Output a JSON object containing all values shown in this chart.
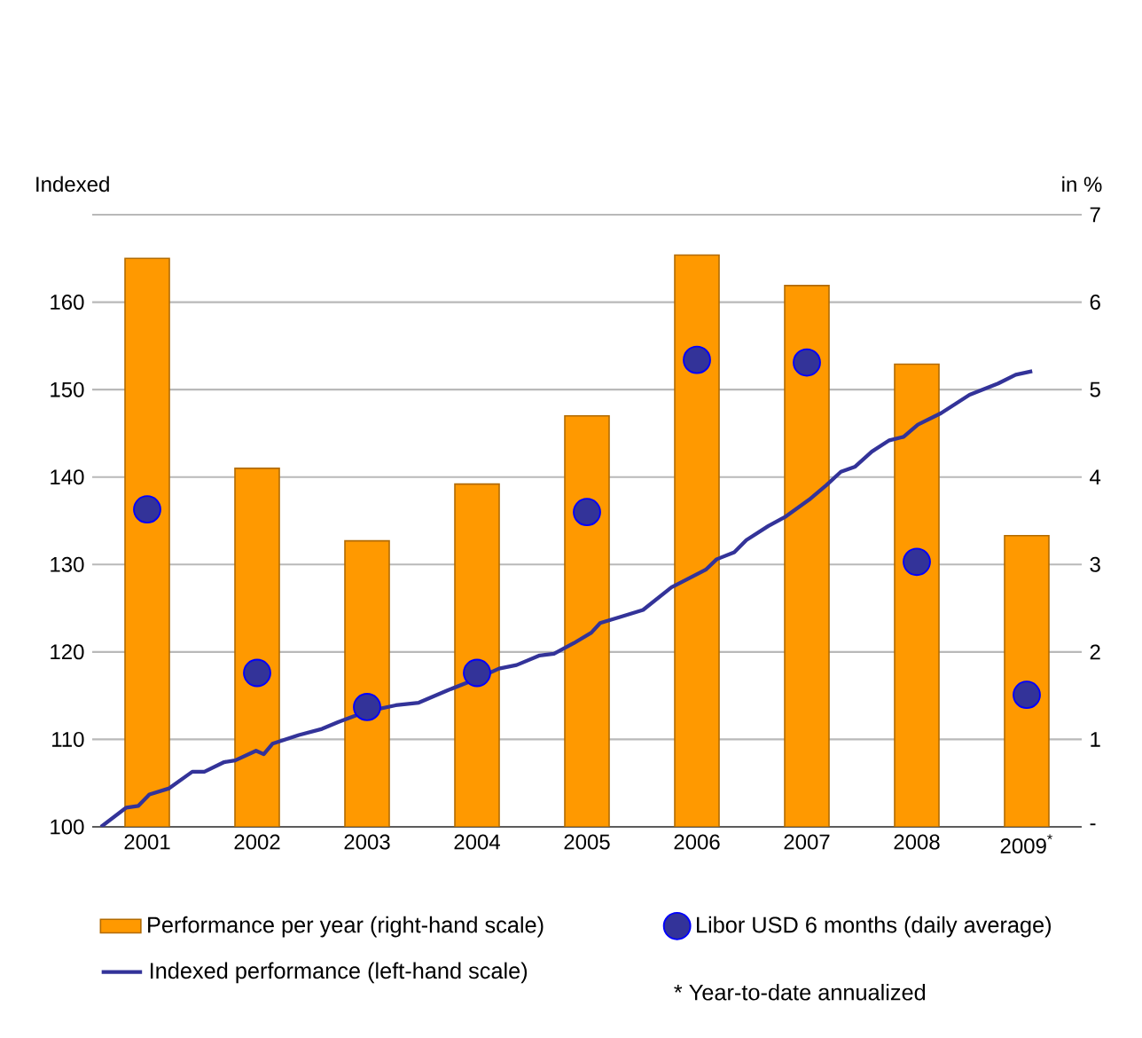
{
  "chart_data": {
    "type": "bar",
    "x": [
      2001,
      2002,
      2003,
      2004,
      2005,
      2006,
      2007,
      2008,
      2009
    ],
    "xlim": [
      2000.5,
      2009.5
    ],
    "xticks": [
      2001,
      2002,
      2003,
      2004,
      2005,
      2006,
      2007,
      2008,
      {
        "value": 2009,
        "label": "2009$^{*}$"
      }
    ],
    "ylabel": "Indexed",
    "y2label": "in %",
    "ylim": [
      100,
      170
    ],
    "yticks": [
      100,
      110,
      120,
      130,
      140,
      150,
      160,
      {
        "value": 170,
        "label": null
      }
    ],
    "y2lim": [
      0,
      7
    ],
    "y2ticks": [
      {
        "value": 0,
        "label": "-"
      },
      1,
      2,
      3,
      4,
      5,
      6,
      7
    ],
    "grid": "y",
    "legend": "bottom",
    "annotations": [
      "* Year-to-date annualized"
    ],
    "series": [
      {
        "name": "Performance per year (right-hand scale)",
        "axis": "y2",
        "color": "#ff9900",
        "values": [
          6.5,
          4.1,
          3.27,
          3.92,
          4.7,
          6.54,
          6.19,
          5.29,
          3.33
        ]
      },
      {
        "name": "Libor USD 6 months (daily average)",
        "type": "scatter",
        "axis": "y2",
        "color": "#333399",
        "values": [
          3.63,
          1.76,
          1.37,
          1.76,
          3.6,
          5.34,
          5.31,
          3.03,
          1.51
        ]
      },
      {
        "name": "Indexed performance (left-hand scale)",
        "type": "line",
        "color": "#333399",
        "x": [
          2000.58,
          2000.81,
          2000.92,
          2001.02,
          2001.2,
          2001.41,
          2001.52,
          2001.7,
          2001.8,
          2001.99,
          2002.06,
          2002.14,
          2002.38,
          2002.59,
          2002.74,
          2003.0,
          2003.26,
          2003.47,
          2003.73,
          2003.99,
          2004.2,
          2004.36,
          2004.57,
          2004.7,
          2004.88,
          2005.04,
          2005.12,
          2005.3,
          2005.51,
          2005.77,
          2006.08,
          2006.18,
          2006.34,
          2006.45,
          2006.65,
          2006.81,
          2007.02,
          2007.18,
          2007.31,
          2007.44,
          2007.59,
          2007.75,
          2007.88,
          2008.01,
          2008.22,
          2008.48,
          2008.74,
          2008.9,
          2009.05
        ],
        "values": [
          100,
          102.2,
          102.4,
          103.7,
          104.4,
          106.3,
          106.3,
          107.4,
          107.6,
          108.7,
          108.3,
          109.5,
          110.5,
          111.2,
          112.0,
          113.2,
          113.9,
          114.2,
          115.6,
          116.9,
          118.1,
          118.5,
          119.6,
          119.8,
          121.0,
          122.2,
          123.3,
          124.0,
          124.8,
          127.4,
          129.4,
          130.6,
          131.4,
          132.8,
          134.4,
          135.5,
          137.4,
          139.1,
          140.6,
          141.2,
          142.9,
          144.2,
          144.6,
          146.0,
          147.3,
          149.4,
          150.7,
          151.7,
          152.1
        ]
      }
    ]
  }
}
